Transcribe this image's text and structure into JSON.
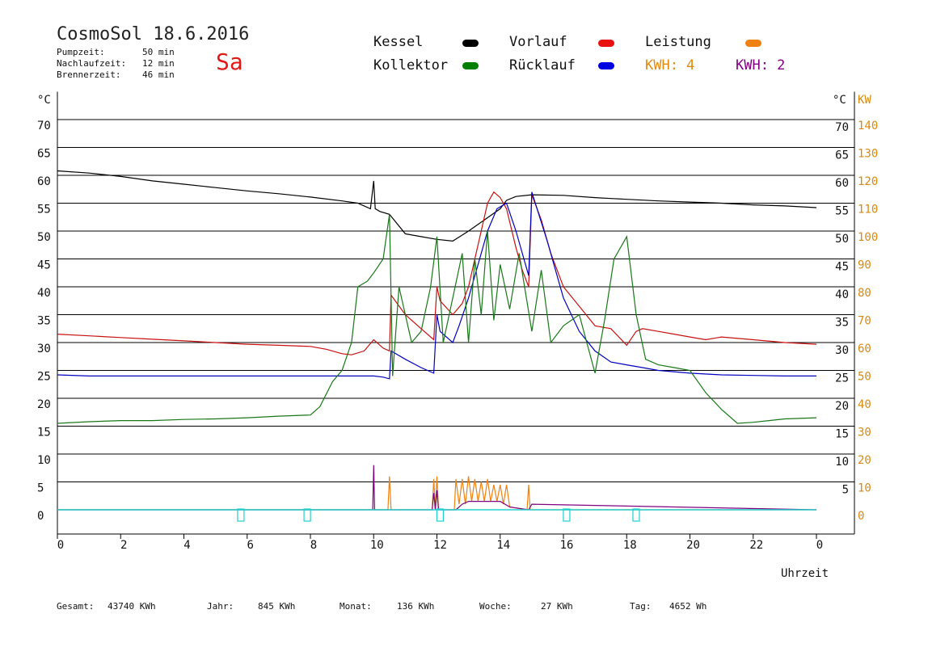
{
  "header": {
    "title": "CosmoSol 18.6.2016",
    "day": "Sa",
    "info": [
      {
        "label": "Pumpzeit:",
        "value": "50 min"
      },
      {
        "label": "Nachlaufzeit:",
        "value": "12 min"
      },
      {
        "label": "Brennerzeit:",
        "value": "46 min"
      }
    ]
  },
  "legend": {
    "kessel": {
      "label": "Kessel",
      "color": "#000000"
    },
    "kollektor": {
      "label": "Kollektor",
      "color": "#008000"
    },
    "vorlauf": {
      "label": "Vorlauf",
      "color": "#e81010"
    },
    "ruecklauf": {
      "label": "Rücklauf",
      "color": "#0000e0"
    },
    "leistung": {
      "label": "Leistung",
      "color": "#f08010"
    },
    "kwh1": {
      "label": "KWH: 4",
      "color": "#e08a10"
    },
    "kwh2": {
      "label": "KWH: 2",
      "color": "#800080"
    }
  },
  "axes": {
    "left_unit": "°C",
    "right_unit_c": "°C",
    "right_unit_kw": "KW",
    "x_label": "Uhrzeit"
  },
  "footer": [
    {
      "label": "Gesamt:",
      "value": "43740 KWh"
    },
    {
      "label": "Jahr:",
      "value": "845 KWh"
    },
    {
      "label": "Monat:",
      "value": "136 KWh"
    },
    {
      "label": "Woche:",
      "value": "27 KWh"
    },
    {
      "label": "Tag:",
      "value": "4652 Wh"
    }
  ],
  "chart_data": {
    "type": "line",
    "x_ticks": [
      "0",
      "2",
      "4",
      "6",
      "8",
      "10",
      "12",
      "14",
      "16",
      "18",
      "20",
      "22",
      "0"
    ],
    "xlim": [
      0,
      24
    ],
    "ylim": [
      -5,
      75
    ],
    "y_ticks_left": [
      0,
      5,
      10,
      15,
      20,
      25,
      30,
      35,
      40,
      45,
      50,
      55,
      60,
      65,
      70
    ],
    "y_ticks_right_c": [
      5,
      10,
      15,
      20,
      25,
      30,
      35,
      40,
      45,
      50,
      55,
      60,
      65,
      70
    ],
    "y_ticks_right_kw": [
      0,
      10,
      20,
      30,
      40,
      50,
      60,
      70,
      80,
      90,
      100,
      110,
      120,
      130,
      140
    ],
    "series": [
      {
        "name": "Kessel",
        "color": "#000000",
        "x": [
          0,
          1,
          2,
          3,
          4,
          5,
          6,
          7,
          8,
          9,
          9.5,
          9.9,
          10,
          10.05,
          10.2,
          10.5,
          11,
          11.5,
          12,
          12.5,
          13,
          13.5,
          14,
          14.2,
          14.5,
          15,
          16,
          17,
          18,
          19,
          20,
          21,
          22,
          23,
          24
        ],
        "y": [
          60.8,
          60.4,
          59.8,
          59.0,
          58.4,
          57.8,
          57.2,
          56.7,
          56.1,
          55.4,
          55.0,
          54.0,
          59.0,
          54.0,
          53.5,
          53.0,
          49.5,
          49.0,
          48.5,
          48.2,
          50.0,
          52.0,
          54.0,
          55.5,
          56.2,
          56.5,
          56.4,
          56.0,
          55.7,
          55.4,
          55.2,
          55.0,
          54.7,
          54.5,
          54.2
        ]
      },
      {
        "name": "Vorlauf",
        "color": "#c81010",
        "x": [
          0,
          1,
          2,
          3,
          4,
          5,
          6,
          7,
          8,
          8.5,
          9,
          9.3,
          9.7,
          10,
          10.3,
          10.5,
          10.55,
          11,
          11.5,
          11.9,
          12,
          12.1,
          12.5,
          12.8,
          13,
          13.2,
          13.4,
          13.6,
          13.8,
          14,
          14.2,
          14.5,
          14.7,
          14.9,
          15,
          15.3,
          15.6,
          16,
          16.5,
          17,
          17.5,
          18,
          18.3,
          18.5,
          19,
          19.5,
          20,
          20.5,
          21,
          22,
          23,
          24
        ],
        "y": [
          31.5,
          31.2,
          30.9,
          30.6,
          30.3,
          30.0,
          29.7,
          29.5,
          29.3,
          28.8,
          28.0,
          27.8,
          28.5,
          30.5,
          29.0,
          28.5,
          38.5,
          35.0,
          32.5,
          30.5,
          40.0,
          37.5,
          35.0,
          37.0,
          40.0,
          45.0,
          50.0,
          55.0,
          57.0,
          56.0,
          54.0,
          47.0,
          43.0,
          40.0,
          56.5,
          52.0,
          46.0,
          40.0,
          36.5,
          33.0,
          32.5,
          29.5,
          32.0,
          32.5,
          32.0,
          31.5,
          31.0,
          30.5,
          31.0,
          30.5,
          30.0,
          29.7
        ]
      },
      {
        "name": "Rücklauf",
        "color": "#0000c0",
        "x": [
          0,
          1,
          2,
          3,
          4,
          5,
          6,
          7,
          8,
          9,
          10,
          10.3,
          10.5,
          10.55,
          11,
          11.5,
          11.9,
          12,
          12.1,
          12.5,
          12.7,
          13,
          13.3,
          13.6,
          13.9,
          14.2,
          14.5,
          14.9,
          15,
          15.5,
          16,
          16.5,
          17,
          17.5,
          18,
          18.5,
          19,
          20,
          21,
          22,
          23,
          24
        ],
        "y": [
          24.2,
          24.0,
          24.0,
          24.0,
          24.0,
          24.0,
          24.0,
          24.0,
          24.0,
          24.0,
          24.0,
          23.8,
          23.5,
          28.5,
          27.0,
          25.5,
          24.5,
          35.0,
          32.0,
          30.0,
          33.0,
          38.0,
          44.0,
          50.0,
          54.0,
          55.0,
          50.0,
          42.0,
          57.0,
          48.0,
          38.0,
          32.0,
          28.5,
          26.5,
          26.0,
          25.5,
          25.0,
          24.5,
          24.2,
          24.1,
          24.0,
          24.0
        ]
      },
      {
        "name": "Kollektor",
        "color": "#187818",
        "x": [
          0,
          1,
          2,
          3,
          4,
          5,
          6,
          7,
          8,
          8.3,
          8.7,
          9,
          9.3,
          9.5,
          9.8,
          10,
          10.3,
          10.5,
          10.6,
          10.8,
          11.2,
          11.5,
          11.8,
          12,
          12.2,
          12.5,
          12.8,
          13,
          13.2,
          13.4,
          13.6,
          13.8,
          14,
          14.3,
          14.6,
          15,
          15.3,
          15.6,
          16,
          16.5,
          17,
          17.3,
          17.6,
          18,
          18.3,
          18.6,
          19,
          19.5,
          20,
          20.5,
          21,
          21.5,
          22,
          22.5,
          23,
          24
        ],
        "y": [
          15.5,
          15.8,
          16.0,
          16.0,
          16.2,
          16.3,
          16.5,
          16.8,
          17.0,
          18.5,
          23.0,
          25.0,
          30.0,
          40.0,
          41.0,
          42.5,
          45.0,
          53.0,
          24.0,
          40.0,
          30.0,
          32.0,
          40.0,
          49.0,
          30.0,
          38.0,
          46.0,
          30.0,
          45.0,
          35.0,
          50.0,
          34.0,
          44.0,
          36.0,
          46.0,
          32.0,
          43.0,
          30.0,
          33.0,
          35.0,
          24.5,
          34.0,
          45.0,
          49.0,
          35.0,
          27.0,
          26.0,
          25.5,
          25.0,
          21.0,
          18.0,
          15.5,
          15.7,
          16.0,
          16.3,
          16.5
        ]
      },
      {
        "name": "Leistung",
        "color": "#f08010",
        "x": [
          0,
          10.45,
          10.5,
          10.55,
          11.85,
          11.9,
          11.95,
          12.0,
          12.05,
          12.55,
          12.6,
          12.7,
          12.8,
          12.9,
          13.0,
          13.1,
          13.2,
          13.3,
          13.4,
          13.5,
          13.6,
          13.7,
          13.8,
          13.9,
          14.0,
          14.1,
          14.2,
          14.3,
          14.85,
          14.9,
          14.95,
          24
        ],
        "y": [
          0,
          0,
          6.0,
          0,
          0,
          5.5,
          0,
          6.0,
          0,
          0,
          5.5,
          1.0,
          5.5,
          1.0,
          6.0,
          1.5,
          5.5,
          1.5,
          5.0,
          1.5,
          5.5,
          1.5,
          4.5,
          1.5,
          4.5,
          1.0,
          4.5,
          0.5,
          0,
          4.5,
          0,
          0
        ]
      },
      {
        "name": "KWH 2",
        "color": "#800080",
        "x": [
          0,
          9.97,
          10.0,
          10.03,
          11.85,
          11.9,
          11.95,
          12.0,
          12.05,
          12.6,
          12.8,
          13.0,
          13.5,
          14.0,
          14.3,
          14.9,
          15.0,
          24
        ],
        "y": [
          0,
          0,
          8.0,
          0,
          0,
          3.0,
          0,
          3.5,
          0,
          0,
          1.0,
          1.5,
          1.5,
          1.5,
          0.5,
          0,
          1.0,
          0
        ]
      },
      {
        "name": "Pumpe",
        "color": "#20d0d0",
        "x": [
          0,
          24
        ],
        "y": [
          0,
          0
        ]
      }
    ],
    "markers_x": [
      5.8,
      7.9,
      12.1,
      16.1,
      18.3
    ]
  }
}
